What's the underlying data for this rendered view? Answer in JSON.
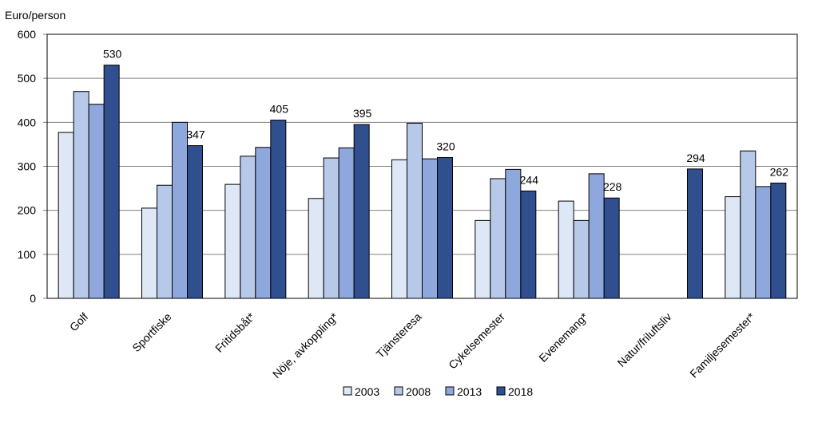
{
  "chart_data": {
    "type": "bar",
    "ylabel": "Euro/person",
    "ylim": [
      0,
      600
    ],
    "yticks": [
      0,
      100,
      200,
      300,
      400,
      500,
      600
    ],
    "grid": true,
    "legend_position": "bottom",
    "categories": [
      "Golf",
      "Sportfiske",
      "Fritidsbåt*",
      "Nöje, avkoppling*",
      "Tjänsteresa",
      "Cykelsemester",
      "Evenemang*",
      "Natur/friluftsliv",
      "Familjesemester*"
    ],
    "series": [
      {
        "name": "2003",
        "color": "#dde7f5",
        "values": [
          377,
          205,
          259,
          227,
          315,
          177,
          221,
          null,
          231
        ]
      },
      {
        "name": "2008",
        "color": "#b7c9e8",
        "values": [
          470,
          257,
          323,
          319,
          398,
          272,
          177,
          null,
          335
        ]
      },
      {
        "name": "2013",
        "color": "#8ea8dd",
        "values": [
          441,
          400,
          343,
          342,
          317,
          293,
          283,
          null,
          254
        ]
      },
      {
        "name": "2018",
        "color": "#2f4f8f",
        "values": [
          530,
          347,
          405,
          395,
          320,
          244,
          228,
          294,
          262
        ]
      }
    ],
    "data_labels": [
      "530",
      "347",
      "405",
      "395",
      "320",
      "244",
      "228",
      "294",
      "262"
    ],
    "colors": {
      "grid": "#808080",
      "axis": "#808080",
      "border": "#000000",
      "bar_stroke": "#000000"
    }
  }
}
